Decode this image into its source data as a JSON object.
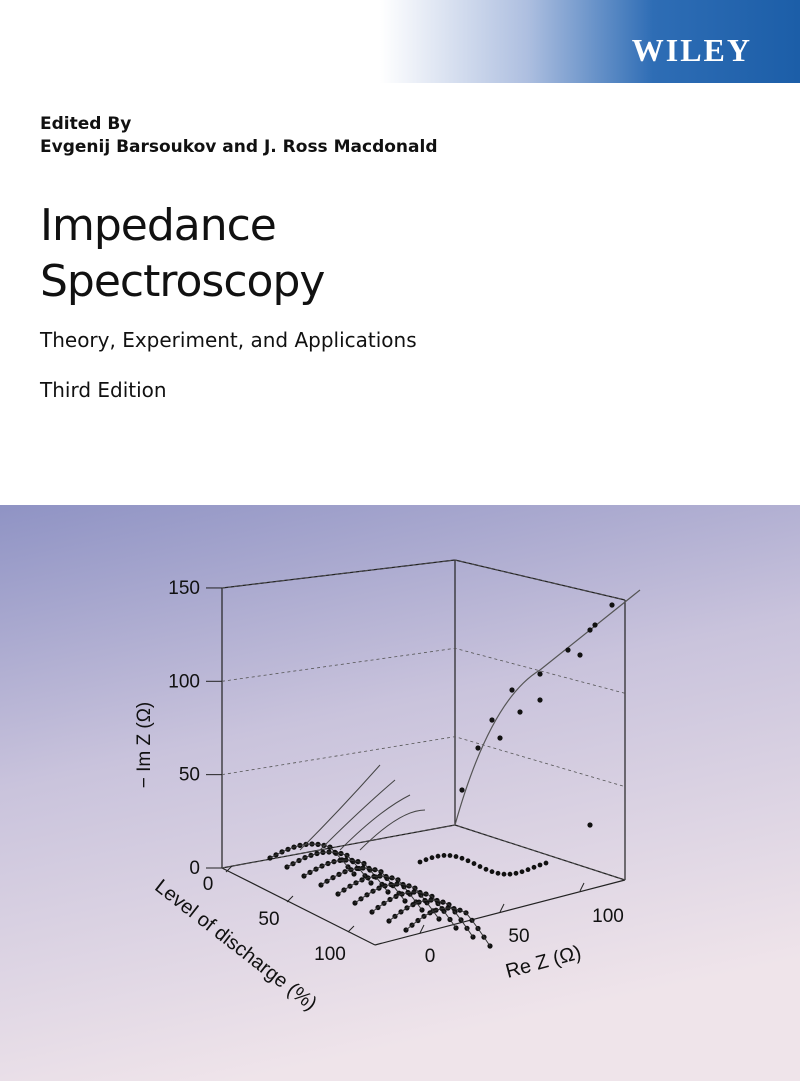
{
  "publisher": "WILEY",
  "editors_label": "Edited By",
  "editors": "Evgenij Barsoukov and J. Ross Macdonald",
  "title_lines": [
    "Impedance",
    "Spectroscopy"
  ],
  "subtitle": "Theory, Experiment, and Applications",
  "edition": "Third Edition",
  "figure": {
    "y_label": "− Im Z (Ω)",
    "x_label": "Re Z (Ω)",
    "z_label": "Level of discharge (%)",
    "y_ticks": [
      0,
      50,
      100,
      150
    ],
    "x_ticks": [
      0,
      50,
      100
    ],
    "z_ticks": [
      0,
      50,
      100
    ]
  }
}
